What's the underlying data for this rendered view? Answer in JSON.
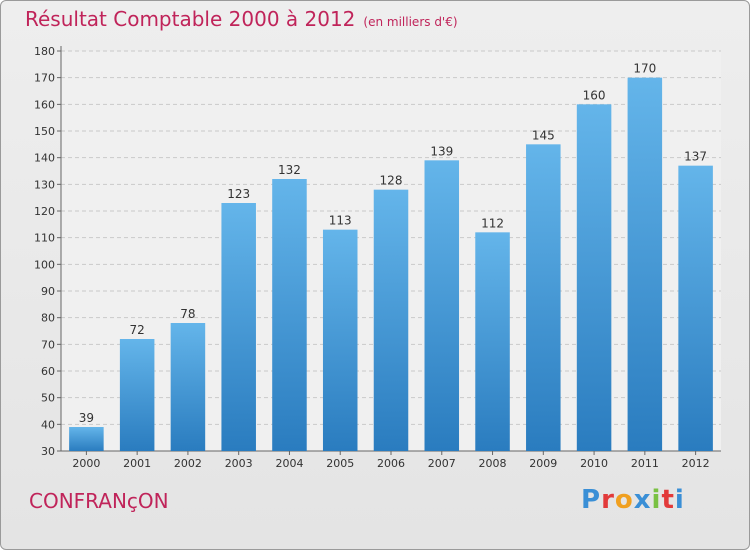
{
  "header": {
    "title": "Résultat Comptable 2000 à 2012",
    "subtitle": "(en milliers d'€)"
  },
  "footer": {
    "place": "CONFRANçON",
    "brand": "Proxiti"
  },
  "colors": {
    "title": "#c0245a",
    "bar_top": "#64b5ea",
    "bar_bottom": "#2a7cbf",
    "grid": "#c9c9c9",
    "logo": [
      "#3a8fd6",
      "#e23a3a",
      "#f0a020",
      "#3a8fd6",
      "#7ac143",
      "#e23a3a",
      "#3a8fd6"
    ]
  },
  "chart_data": {
    "type": "bar",
    "title": "Résultat Comptable 2000 à 2012",
    "subtitle": "(en milliers d'€)",
    "xlabel": "",
    "ylabel": "",
    "categories": [
      "2000",
      "2001",
      "2002",
      "2003",
      "2004",
      "2005",
      "2006",
      "2007",
      "2008",
      "2009",
      "2010",
      "2011",
      "2012"
    ],
    "values": [
      39,
      72,
      78,
      123,
      132,
      113,
      128,
      139,
      112,
      145,
      160,
      170,
      137
    ],
    "ylim": [
      30,
      180
    ],
    "yticks": [
      30,
      40,
      50,
      60,
      70,
      80,
      90,
      100,
      110,
      120,
      130,
      140,
      150,
      160,
      170,
      180
    ],
    "grid": true,
    "legend": "none"
  }
}
